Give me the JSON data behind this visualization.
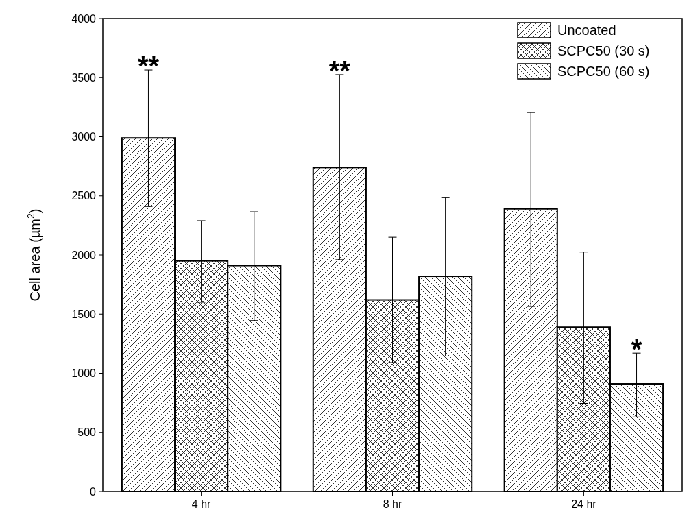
{
  "chart_data": {
    "type": "bar",
    "ylabel": "Cell area (µm$^{2}$)",
    "categories": [
      "4 hr",
      "8 hr",
      "24 hr"
    ],
    "series": [
      {
        "name": "Uncoated",
        "color": "#000000",
        "values": [
          2990,
          2740,
          2390
        ],
        "errors": [
          [
            2410,
            3565
          ],
          [
            1960,
            3525
          ],
          [
            1565,
            3205
          ]
        ]
      },
      {
        "name": "SCPC50 (30 s)",
        "color": "#000000",
        "values": [
          1950,
          1620,
          1390
        ],
        "errors": [
          [
            1600,
            2290
          ],
          [
            1090,
            2150
          ],
          [
            745,
            2025
          ]
        ]
      },
      {
        "name": "SCPC50 (60 s)",
        "color": "#000000",
        "values": [
          1910,
          1820,
          910
        ],
        "errors": [
          [
            1445,
            2365
          ],
          [
            1145,
            2485
          ],
          [
            630,
            1170
          ]
        ]
      }
    ],
    "ylim": [
      0,
      4000
    ],
    "yticks": [
      0,
      500,
      1000,
      1500,
      2000,
      2500,
      3000,
      3500,
      4000
    ],
    "legend": "top right",
    "annotations": [
      "**",
      "**",
      {
        "text": "*",
        "x": "24 hr",
        "y": 910
      }
    ]
  }
}
